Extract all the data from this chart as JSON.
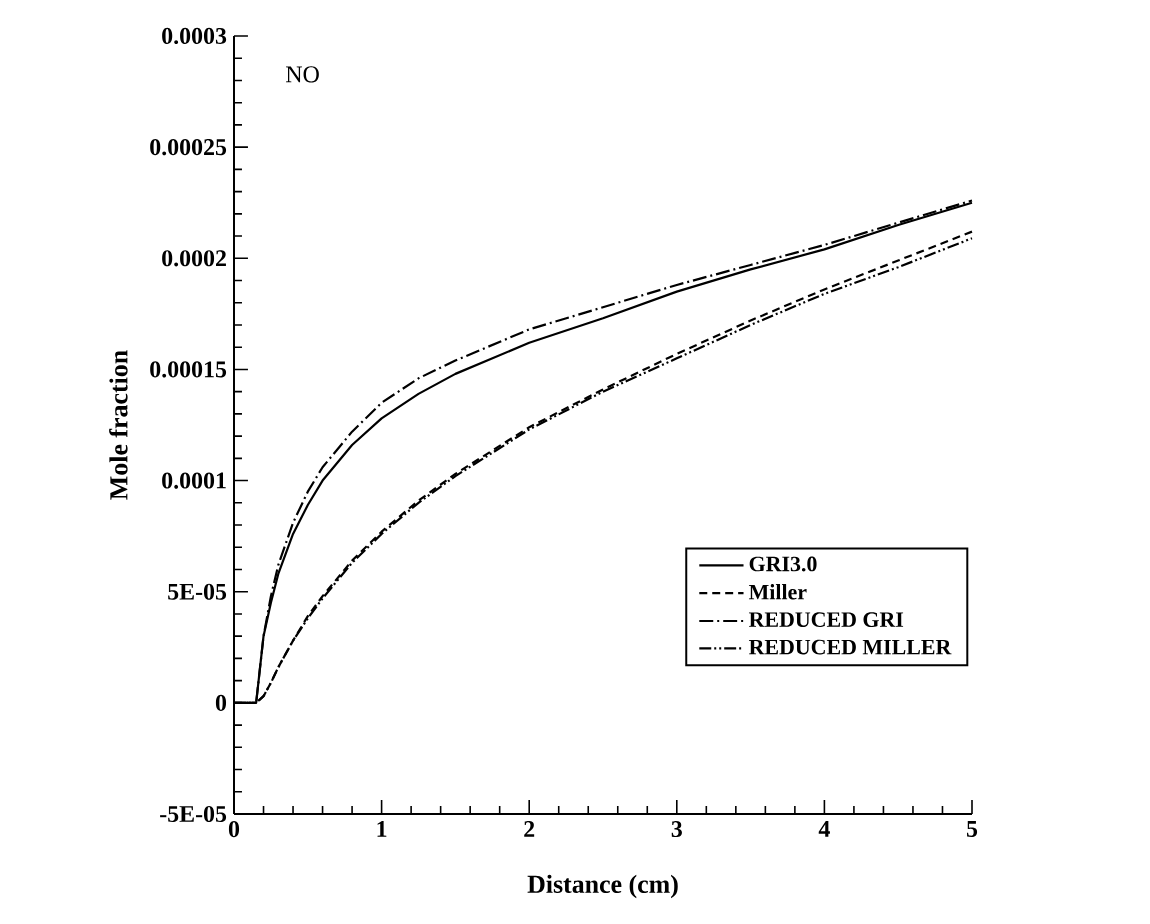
{
  "chart_data": {
    "type": "line",
    "xlabel": "Distance (cm)",
    "ylabel": "Mole fraction",
    "annotations": [
      "NO"
    ],
    "xlim": [
      0,
      5
    ],
    "xticks": [
      0,
      1,
      2,
      3,
      4,
      5
    ],
    "ylim": [
      -5e-05,
      0.0003
    ],
    "yticks": [
      {
        "value": -5e-05,
        "label": "-5E-05"
      },
      {
        "value": 0,
        "label": "0"
      },
      {
        "value": 5e-05,
        "label": "5E-05"
      },
      {
        "value": 0.0001,
        "label": "0.0001"
      },
      {
        "value": 0.00015,
        "label": "0.00015"
      },
      {
        "value": 0.0002,
        "label": "0.0002"
      },
      {
        "value": 0.00025,
        "label": "0.00025"
      },
      {
        "value": 0.0003,
        "label": "0.0003"
      }
    ],
    "grid": false,
    "legend": "bottom right",
    "x": [
      0,
      0.15,
      0.2,
      0.25,
      0.3,
      0.4,
      0.5,
      0.6,
      0.8,
      1,
      1.25,
      1.5,
      2,
      2.5,
      3,
      3.5,
      4,
      4.5,
      5
    ],
    "series": [
      {
        "name": "GRI3.0",
        "color": "#000000",
        "line_style": "solid",
        "values": [
          0,
          0,
          3e-05,
          4.5e-05,
          5.8e-05,
          7.6e-05,
          8.9e-05,
          0.0001,
          0.000116,
          0.000128,
          0.000139,
          0.000148,
          0.000162,
          0.000173,
          0.000185,
          0.000195,
          0.000204,
          0.000215,
          0.000225
        ]
      },
      {
        "name": "Miller",
        "color": "#000000",
        "line_style": "dashed",
        "values": [
          0,
          0,
          3e-06,
          9e-06,
          1.6e-05,
          2.8e-05,
          3.9e-05,
          4.8e-05,
          6.4e-05,
          7.7e-05,
          9.1e-05,
          0.000103,
          0.000124,
          0.000141,
          0.000157,
          0.000172,
          0.000186,
          0.000199,
          0.000212
        ]
      },
      {
        "name": "REDUCED GRI",
        "color": "#000000",
        "line_style": "dash-dot",
        "values": [
          0,
          0,
          3e-05,
          4.8e-05,
          6.2e-05,
          8.1e-05,
          9.5e-05,
          0.000106,
          0.000122,
          0.000135,
          0.000146,
          0.000154,
          0.000168,
          0.000178,
          0.000188,
          0.000197,
          0.000206,
          0.000216,
          0.000226
        ]
      },
      {
        "name": "REDUCED MILLER",
        "color": "#000000",
        "line_style": "dash-dot-dot",
        "values": [
          0,
          0,
          3e-06,
          9e-06,
          1.6e-05,
          2.8e-05,
          3.8e-05,
          4.7e-05,
          6.3e-05,
          7.6e-05,
          9e-05,
          0.000102,
          0.000123,
          0.00014,
          0.000155,
          0.00017,
          0.000184,
          0.000196,
          0.000209
        ]
      }
    ]
  }
}
